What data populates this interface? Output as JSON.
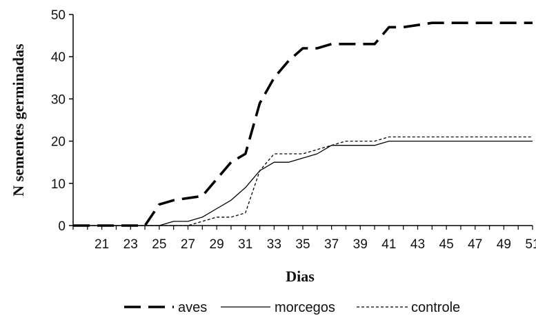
{
  "chart_data": {
    "type": "line",
    "title": "",
    "xlabel": "Dias",
    "ylabel": "N sementes germinadas",
    "xlim": [
      19,
      51
    ],
    "ylim": [
      0,
      50
    ],
    "x_ticks": [
      21,
      23,
      25,
      27,
      29,
      31,
      33,
      35,
      37,
      39,
      41,
      43,
      45,
      47,
      49,
      51
    ],
    "y_ticks": [
      0,
      10,
      20,
      30,
      40,
      50
    ],
    "grid": false,
    "legend": "bottom",
    "x": [
      19,
      20,
      21,
      22,
      23,
      24,
      25,
      26,
      27,
      28,
      29,
      30,
      31,
      32,
      33,
      34,
      35,
      36,
      37,
      38,
      39,
      40,
      41,
      42,
      43,
      44,
      45,
      46,
      47,
      48,
      49,
      50,
      51
    ],
    "series": [
      {
        "name": "aves",
        "style": "long-dash",
        "color": "#000000",
        "values": [
          0,
          0,
          0,
          0,
          0,
          0,
          5,
          6,
          6.5,
          7,
          11,
          15,
          17,
          29,
          35,
          39,
          42,
          42,
          43,
          43,
          43,
          43,
          47,
          47,
          47.5,
          48,
          48,
          48,
          48,
          48,
          48,
          48,
          48
        ]
      },
      {
        "name": "morcegos",
        "style": "solid",
        "color": "#000000",
        "values": [
          0,
          0,
          0,
          0,
          0,
          0,
          0,
          1,
          1,
          2,
          4,
          6,
          9,
          13,
          15,
          15,
          16,
          17,
          19,
          19,
          19,
          19,
          20,
          20,
          20,
          20,
          20,
          20,
          20,
          20,
          20,
          20,
          20
        ]
      },
      {
        "name": "controle",
        "style": "short-dash",
        "color": "#000000",
        "values": [
          0,
          0,
          0,
          0,
          0,
          0,
          0,
          0,
          0,
          1,
          2,
          2,
          3,
          13,
          17,
          17,
          17,
          18,
          19,
          20,
          20,
          20,
          21,
          21,
          21,
          21,
          21,
          21,
          21,
          21,
          21,
          21,
          21
        ]
      }
    ]
  }
}
